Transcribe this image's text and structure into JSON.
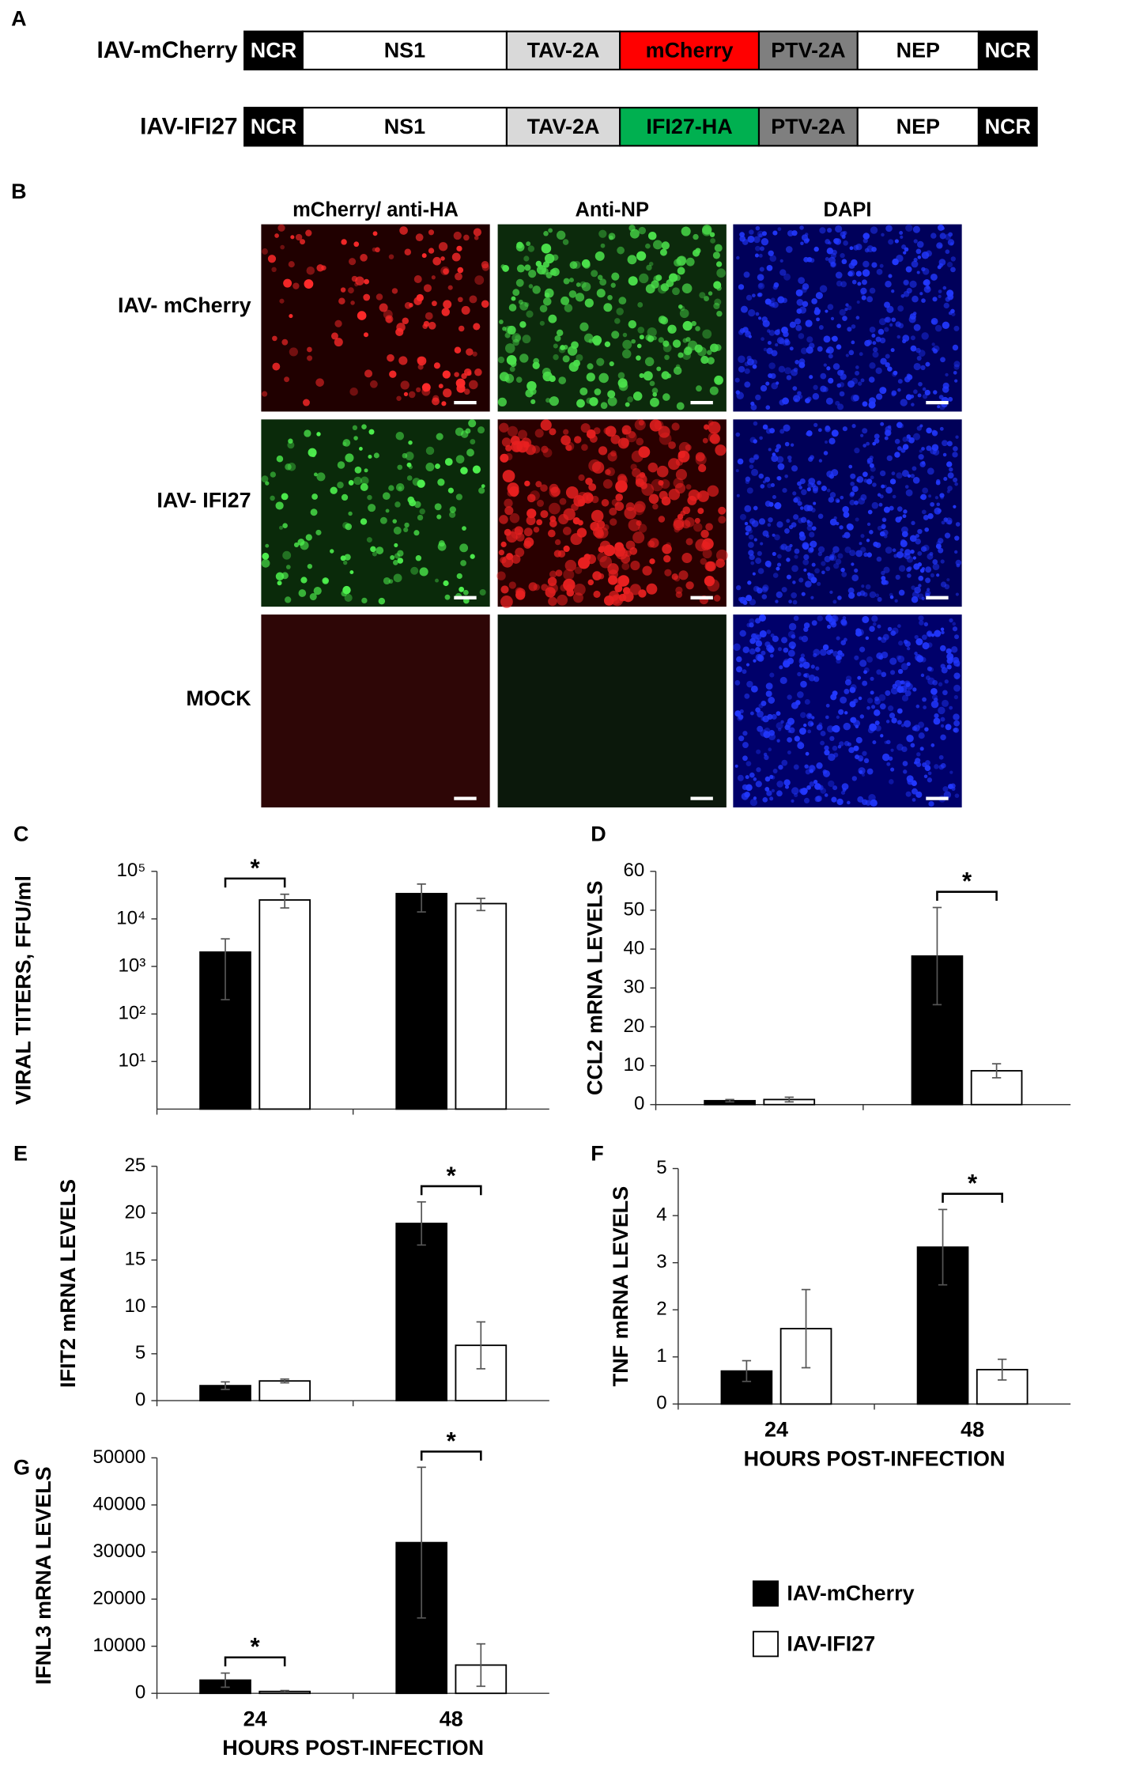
{
  "panel_a": {
    "label": "A",
    "constructs": [
      {
        "name": "IAV-mCherry",
        "segments": [
          "NCR",
          "NS1",
          "TAV-2A",
          "mCherry",
          "PTV-2A",
          "NEP",
          "NCR"
        ]
      },
      {
        "name": "IAV-IFI27",
        "segments": [
          "NCR",
          "NS1",
          "TAV-2A",
          "IFI27-HA",
          "PTV-2A",
          "NEP",
          "NCR"
        ]
      }
    ]
  },
  "panel_b": {
    "label": "B",
    "columns": [
      "mCherry/ anti-HA",
      "Anti-NP",
      "DAPI"
    ],
    "rows": [
      "IAV- mCherry",
      "IAV- IFI27",
      "MOCK"
    ]
  },
  "chart_data": [
    {
      "label": "C",
      "type": "bar",
      "ylabel": "VIRAL TITERS, FFU/ml",
      "categories": [
        null,
        null
      ],
      "log_scale": true,
      "series": [
        {
          "name": "IAV-mCherry",
          "color": "#000000",
          "values": [
            2000,
            34000
          ],
          "errors": [
            1800,
            20000
          ]
        },
        {
          "name": "IAV-IFI27",
          "color": "#ffffff",
          "values": [
            25000,
            21000
          ],
          "errors": [
            8000,
            6000
          ]
        }
      ],
      "ylim": [
        1,
        100000
      ],
      "yticks": [
        {
          "value": 10,
          "label": "10¹"
        },
        {
          "value": 100,
          "label": "10²"
        },
        {
          "value": 1000,
          "label": "10³"
        },
        {
          "value": 10000,
          "label": "10⁴"
        },
        {
          "value": 100000,
          "label": "10⁵"
        }
      ],
      "significance": [
        "*",
        null
      ]
    },
    {
      "label": "D",
      "type": "bar",
      "ylabel": "CCL2 mRNA LEVELS",
      "categories": [
        null,
        null
      ],
      "series": [
        {
          "name": "IAV-mCherry",
          "color": "#000000",
          "values": [
            1,
            38.2
          ],
          "errors": [
            0.3,
            12.5
          ]
        },
        {
          "name": "IAV-IFI27",
          "color": "#ffffff",
          "values": [
            1.3,
            8.7
          ],
          "errors": [
            0.6,
            1.8
          ]
        }
      ],
      "ylim": [
        0,
        60
      ],
      "yticks": [
        0,
        10,
        20,
        30,
        40,
        50,
        60
      ],
      "significance": [
        null,
        "*"
      ]
    },
    {
      "label": "E",
      "type": "bar",
      "ylabel": "IFIT2 mRNA LEVELS",
      "categories": [
        null,
        null
      ],
      "series": [
        {
          "name": "IAV-mCherry",
          "color": "#000000",
          "values": [
            1.6,
            18.9
          ],
          "errors": [
            0.4,
            2.3
          ]
        },
        {
          "name": "IAV-IFI27",
          "color": "#ffffff",
          "values": [
            2.1,
            5.9
          ],
          "errors": [
            0.2,
            2.5
          ]
        }
      ],
      "ylim": [
        0,
        25
      ],
      "yticks": [
        0,
        5,
        10,
        15,
        20,
        25
      ],
      "significance": [
        null,
        "*"
      ]
    },
    {
      "label": "F",
      "type": "bar",
      "ylabel": "TNF mRNA LEVELS",
      "xlabel": "HOURS POST-INFECTION",
      "categories": [
        "24",
        "48"
      ],
      "series": [
        {
          "name": "IAV-mCherry",
          "color": "#000000",
          "values": [
            0.7,
            3.33
          ],
          "errors": [
            0.22,
            0.8
          ]
        },
        {
          "name": "IAV-IFI27",
          "color": "#ffffff",
          "values": [
            1.6,
            0.73
          ],
          "errors": [
            0.83,
            0.22
          ]
        }
      ],
      "ylim": [
        0,
        5
      ],
      "yticks": [
        0,
        1,
        2,
        3,
        4,
        5
      ],
      "significance": [
        null,
        "*"
      ]
    },
    {
      "label": "G",
      "type": "bar",
      "ylabel": "IFNL3 mRNA LEVELS",
      "xlabel": "HOURS POST-INFECTION",
      "categories": [
        "24",
        "48"
      ],
      "series": [
        {
          "name": "IAV-mCherry",
          "color": "#000000",
          "values": [
            2800,
            32000
          ],
          "errors": [
            1500,
            16000
          ]
        },
        {
          "name": "IAV-IFI27",
          "color": "#ffffff",
          "values": [
            400,
            6000
          ],
          "errors": [
            200,
            4500
          ]
        }
      ],
      "ylim": [
        0,
        50000
      ],
      "yticks": [
        0,
        10000,
        20000,
        30000,
        40000,
        50000
      ],
      "significance": [
        "*",
        "*"
      ]
    }
  ]
}
